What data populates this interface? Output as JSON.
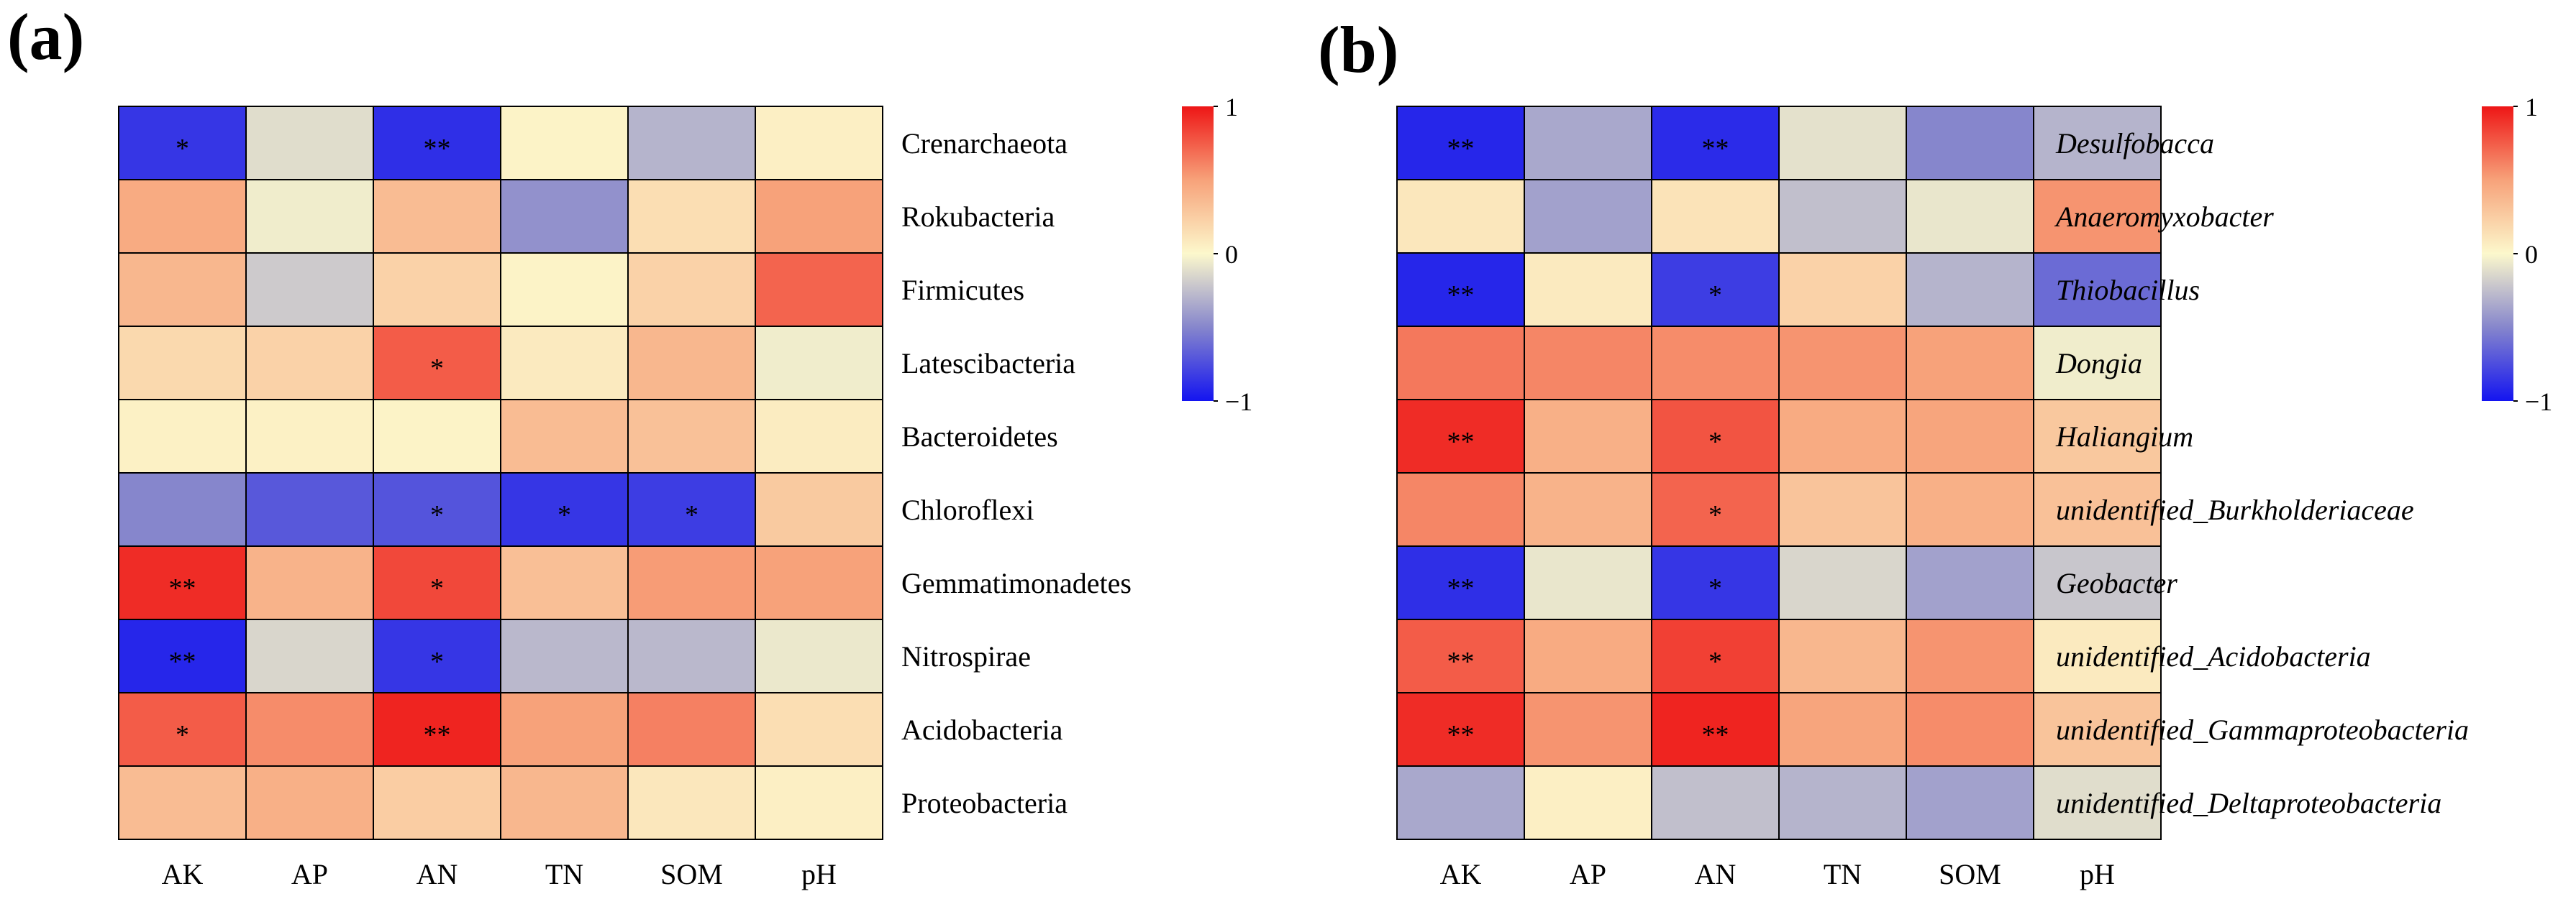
{
  "chart_data": [
    {
      "type": "heatmap",
      "panel_label": "(a)",
      "columns": [
        "AK",
        "AP",
        "AN",
        "TN",
        "SOM",
        "pH"
      ],
      "rows": [
        "Crenarchaeota",
        "Rokubacteria",
        "Firmicutes",
        "Latescibacteria",
        "Bacteroidetes",
        "Chloroflexi",
        "Gemmatimonadetes",
        "Nitrospirae",
        "Acidobacteria",
        "Proteobacteria"
      ],
      "row_style": "normal",
      "values": [
        [
          -0.85,
          -0.12,
          -0.88,
          0.03,
          -0.3,
          0.05
        ],
        [
          0.45,
          -0.05,
          0.35,
          -0.45,
          0.15,
          0.5
        ],
        [
          0.38,
          -0.2,
          0.22,
          0.03,
          0.22,
          0.72
        ],
        [
          0.18,
          0.22,
          0.75,
          0.08,
          0.38,
          -0.05
        ],
        [
          0.04,
          0.04,
          0.03,
          0.35,
          0.32,
          0.07
        ],
        [
          -0.5,
          -0.7,
          -0.72,
          -0.85,
          -0.82,
          0.27
        ],
        [
          0.92,
          0.4,
          0.82,
          0.33,
          0.52,
          0.5
        ],
        [
          -0.92,
          -0.15,
          -0.85,
          -0.28,
          -0.28,
          -0.07
        ],
        [
          0.75,
          0.58,
          0.95,
          0.5,
          0.62,
          0.15
        ],
        [
          0.35,
          0.42,
          0.25,
          0.38,
          0.1,
          0.05
        ]
      ],
      "significance": [
        [
          "*",
          "",
          "**",
          "",
          "",
          ""
        ],
        [
          "",
          "",
          "",
          "",
          "",
          ""
        ],
        [
          "",
          "",
          "",
          "",
          "",
          ""
        ],
        [
          "",
          "",
          "*",
          "",
          "",
          ""
        ],
        [
          "",
          "",
          "",
          "",
          "",
          ""
        ],
        [
          "",
          "",
          "*",
          "*",
          "*",
          ""
        ],
        [
          "**",
          "",
          "*",
          "",
          "",
          ""
        ],
        [
          "**",
          "",
          "*",
          "",
          "",
          ""
        ],
        [
          "*",
          "",
          "**",
          "",
          "",
          ""
        ],
        [
          "",
          "",
          "",
          "",
          "",
          ""
        ]
      ],
      "colorbar": {
        "min": -1,
        "max": 1,
        "ticks": [
          "1",
          "0",
          "−1"
        ]
      }
    },
    {
      "type": "heatmap",
      "panel_label": "(b)",
      "columns": [
        "AK",
        "AP",
        "AN",
        "TN",
        "SOM",
        "pH"
      ],
      "rows": [
        "Desulfobacca",
        "Anaeromyxobacter",
        "Thiobacillus",
        "Dongia",
        "Haliangium",
        "unidentified_Burkholderiaceae",
        "Geobacter",
        "unidentified_Acidobacteria",
        "unidentified_Gammaproteobacteria",
        "unidentified_Deltaproteobacteria"
      ],
      "row_style": "italic",
      "values": [
        [
          -0.92,
          -0.35,
          -0.9,
          -0.1,
          -0.5,
          -0.3
        ],
        [
          0.1,
          -0.38,
          0.12,
          -0.25,
          -0.08,
          0.55
        ],
        [
          -0.92,
          0.08,
          -0.82,
          0.22,
          -0.3,
          -0.62
        ],
        [
          0.65,
          0.6,
          0.58,
          0.55,
          0.5,
          -0.05
        ],
        [
          0.92,
          0.42,
          0.78,
          0.45,
          0.48,
          0.28
        ],
        [
          0.6,
          0.4,
          0.72,
          0.3,
          0.42,
          0.32
        ],
        [
          -0.88,
          -0.08,
          -0.85,
          -0.15,
          -0.38,
          -0.22
        ],
        [
          0.75,
          0.45,
          0.85,
          0.38,
          0.55,
          0.08
        ],
        [
          0.92,
          0.55,
          0.95,
          0.48,
          0.58,
          0.3
        ],
        [
          -0.35,
          0.05,
          -0.25,
          -0.3,
          -0.38,
          -0.12
        ]
      ],
      "significance": [
        [
          "**",
          "",
          "**",
          "",
          "",
          ""
        ],
        [
          "",
          "",
          "",
          "",
          "",
          ""
        ],
        [
          "**",
          "",
          "*",
          "",
          "",
          ""
        ],
        [
          "",
          "",
          "",
          "",
          "",
          ""
        ],
        [
          "**",
          "",
          "*",
          "",
          "",
          ""
        ],
        [
          "",
          "",
          "*",
          "",
          "",
          ""
        ],
        [
          "**",
          "",
          "*",
          "",
          "",
          ""
        ],
        [
          "**",
          "",
          "*",
          "",
          "",
          ""
        ],
        [
          "**",
          "",
          "**",
          "",
          "",
          ""
        ],
        [
          "",
          "",
          "",
          "",
          "",
          ""
        ]
      ],
      "colorbar": {
        "min": -1,
        "max": 1,
        "ticks": [
          "1",
          "0",
          "−1"
        ]
      }
    }
  ]
}
